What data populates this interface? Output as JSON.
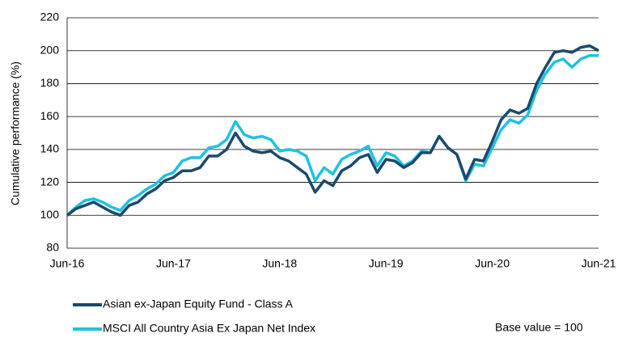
{
  "chart_data": {
    "type": "line",
    "y_label": "Cumulative performance (%)",
    "annotation": "Base value = 100",
    "categories": [
      "Jun-16",
      null,
      null,
      null,
      null,
      null,
      null,
      null,
      null,
      null,
      null,
      null,
      "Jun-17",
      null,
      null,
      null,
      null,
      null,
      null,
      null,
      null,
      null,
      null,
      null,
      "Jun-18",
      null,
      null,
      null,
      null,
      null,
      null,
      null,
      null,
      null,
      null,
      null,
      "Jun-19",
      null,
      null,
      null,
      null,
      null,
      null,
      null,
      null,
      null,
      null,
      null,
      "Jun-20",
      null,
      null,
      null,
      null,
      null,
      null,
      null,
      null,
      null,
      null,
      null,
      "Jun-21"
    ],
    "series": [
      {
        "name": "Asian ex-Japan Equity Fund - Class A",
        "color": "#1b4a6b",
        "values": [
          100,
          104,
          106,
          108,
          105,
          102,
          100,
          106,
          108,
          113,
          116,
          121,
          123,
          127,
          127,
          129,
          136,
          136,
          140,
          150,
          142,
          139,
          138,
          139,
          135,
          133,
          129,
          125,
          114,
          121,
          118,
          127,
          130,
          135,
          137,
          126,
          134,
          133,
          129,
          132,
          138,
          138,
          148,
          141,
          137,
          122,
          134,
          133,
          145,
          158,
          164,
          162,
          165,
          180,
          190,
          199,
          200,
          199,
          202,
          203,
          200
        ]
      },
      {
        "name": "MSCI All Country Asia Ex Japan Net Index",
        "color": "#1cc3e0",
        "values": [
          100,
          105,
          109,
          110,
          108,
          105,
          103,
          109,
          112,
          116,
          119,
          124,
          126,
          133,
          135,
          135,
          141,
          142,
          146,
          157,
          149,
          147,
          148,
          146,
          139,
          140,
          139,
          136,
          121,
          129,
          125,
          134,
          137,
          139,
          142,
          130,
          138,
          136,
          130,
          133,
          139,
          138,
          148,
          141,
          137,
          121,
          131,
          130,
          141,
          152,
          158,
          156,
          161,
          176,
          186,
          193,
          195,
          190,
          195,
          197,
          197
        ]
      }
    ],
    "ylim": [
      80,
      220
    ],
    "yticks": [
      80,
      100,
      120,
      140,
      160,
      180,
      200,
      220
    ],
    "grid": true
  }
}
